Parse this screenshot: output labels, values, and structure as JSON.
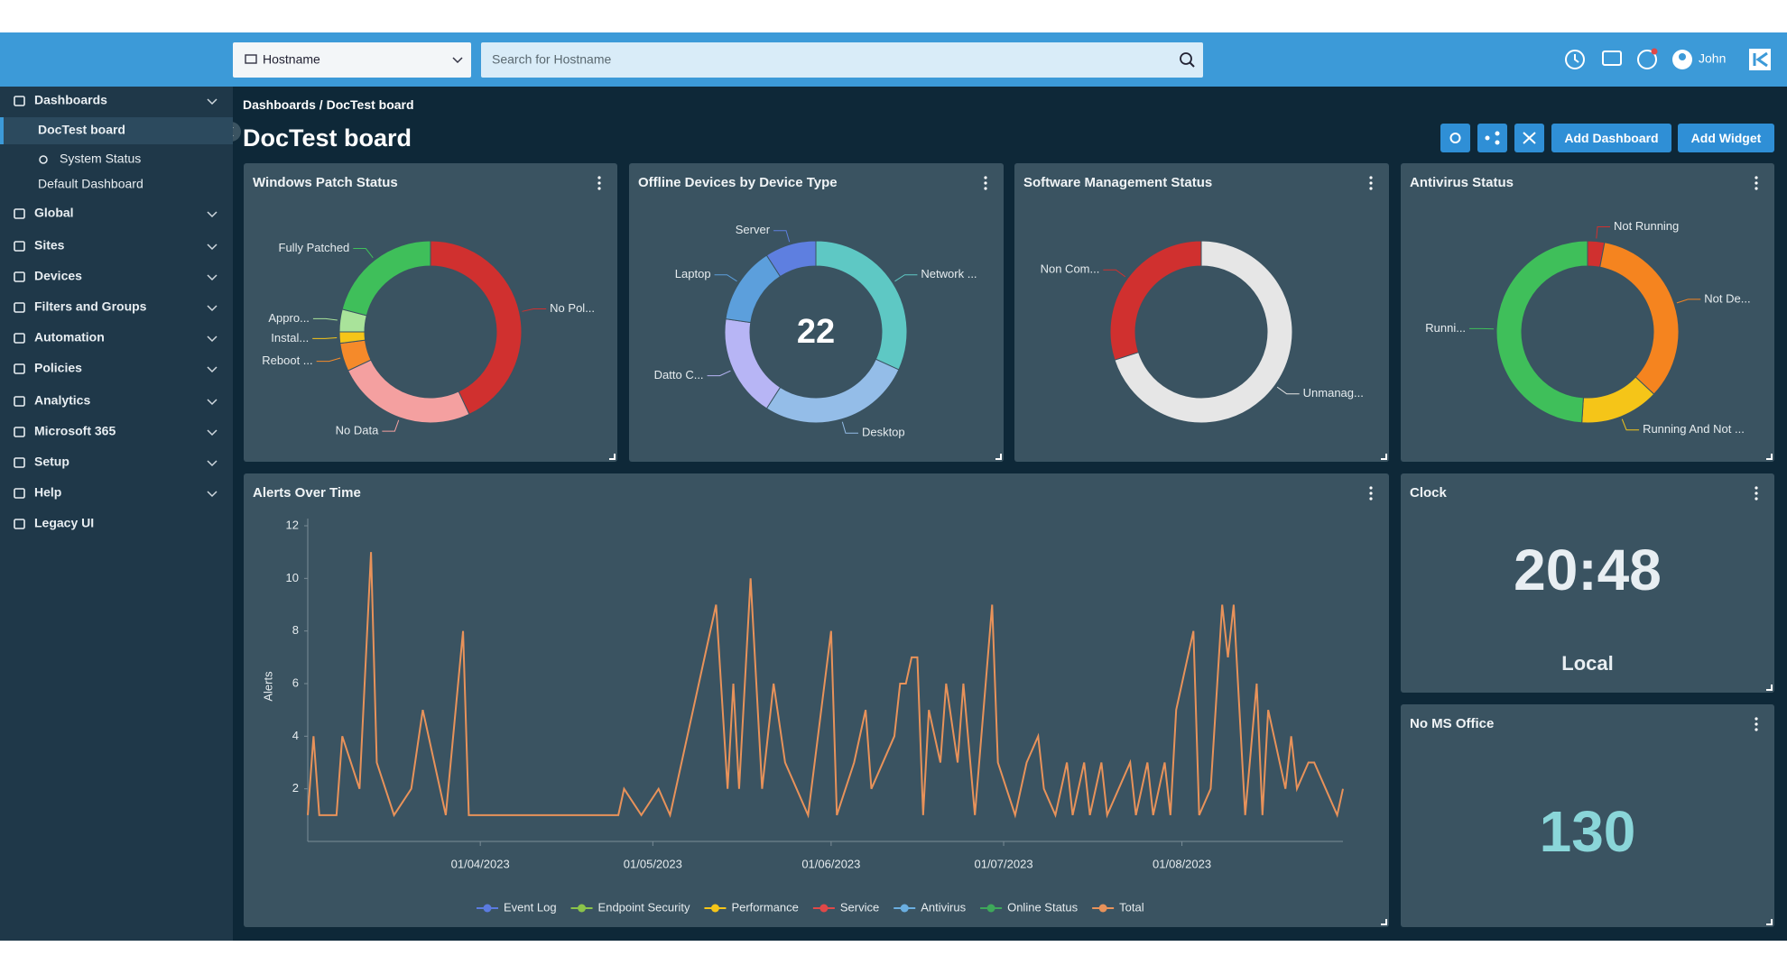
{
  "header": {
    "hostname_select": "Hostname",
    "search_placeholder": "Search for Hostname",
    "user": "John"
  },
  "sidebar": [
    {
      "label": "Dashboards",
      "level": 0,
      "expandable": true
    },
    {
      "label": "DocTest board",
      "level": 1,
      "active": true
    },
    {
      "label": "System Status",
      "level": 2
    },
    {
      "label": "Default Dashboard",
      "level": 1
    },
    {
      "label": "Global",
      "level": 0,
      "expandable": true
    },
    {
      "label": "Sites",
      "level": 0,
      "expandable": true
    },
    {
      "label": "Devices",
      "level": 0,
      "expandable": true
    },
    {
      "label": "Filters and Groups",
      "level": 0,
      "expandable": true
    },
    {
      "label": "Automation",
      "level": 0,
      "expandable": true
    },
    {
      "label": "Policies",
      "level": 0,
      "expandable": true
    },
    {
      "label": "Analytics",
      "level": 0,
      "expandable": true
    },
    {
      "label": "Microsoft 365",
      "level": 0,
      "expandable": true
    },
    {
      "label": "Setup",
      "level": 0,
      "expandable": true
    },
    {
      "label": "Help",
      "level": 0,
      "expandable": true
    },
    {
      "label": "Legacy UI",
      "level": 0
    }
  ],
  "breadcrumb": "Dashboards / DocTest board",
  "page_title": "DocTest board",
  "buttons": [
    "Add Dashboard",
    "Add Widget"
  ],
  "widgets": [
    {
      "title": "Windows Patch Status",
      "type": "donut",
      "categories": [
        "No Pol...",
        "No Data",
        "Reboot ...",
        "Instal...",
        "Appro...",
        "Fully Patched"
      ],
      "values": [
        43,
        25,
        5,
        2,
        4,
        21
      ],
      "colors": [
        "#d0302f",
        "#f4a0a0",
        "#f58a2a",
        "#f5c518",
        "#a9e39a",
        "#3fbf5a"
      ]
    },
    {
      "title": "Offline Devices by Device Type",
      "type": "donut",
      "total": 22,
      "categories": [
        "Network ...",
        "Desktop",
        "Datto C...",
        "Laptop",
        "Server"
      ],
      "values": [
        7,
        6,
        4,
        3,
        2
      ],
      "colors": [
        "#5ec8c4",
        "#94bde8",
        "#b7b5f5",
        "#5c9fdc",
        "#5e7fe0"
      ]
    },
    {
      "title": "Software Management Status",
      "type": "donut",
      "categories": [
        "Unmanag...",
        "Non Com..."
      ],
      "values": [
        70,
        30
      ],
      "colors": [
        "#e6e6e6",
        "#d0302f"
      ]
    },
    {
      "title": "Antivirus Status",
      "type": "donut",
      "categories": [
        "Not Running",
        "Not De...",
        "Running And Not ...",
        "Runni..."
      ],
      "values": [
        3,
        34,
        14,
        49
      ],
      "colors": [
        "#d0302f",
        "#f5841f",
        "#f5c518",
        "#3fbf5a"
      ]
    },
    {
      "title": "Alerts Over Time",
      "type": "line",
      "y_label": "Alerts",
      "x": [
        "02/03/2023",
        "03/03/2023",
        "04/03/2023",
        "07/03/2023",
        "08/03/2023",
        "11/03/2023",
        "13/03/2023",
        "14/03/2023",
        "17/03/2023",
        "20/03/2023",
        "22/03/2023",
        "26/03/2023",
        "29/03/2023",
        "30/03/2023",
        "25/04/2023",
        "26/04/2023",
        "29/04/2023",
        "02/05/2023",
        "04/05/2023",
        "12/05/2023",
        "14/05/2023",
        "15/05/2023",
        "16/05/2023",
        "18/05/2023",
        "20/05/2023",
        "22/05/2023",
        "24/05/2023",
        "28/05/2023",
        "01/06/2023",
        "02/06/2023",
        "05/06/2023",
        "07/06/2023",
        "08/06/2023",
        "12/06/2023",
        "13/06/2023",
        "14/06/2023",
        "15/06/2023",
        "16/06/2023",
        "17/06/2023",
        "18/06/2023",
        "20/06/2023",
        "21/06/2023",
        "23/06/2023",
        "24/06/2023",
        "26/06/2023",
        "29/06/2023",
        "30/06/2023",
        "03/07/2023",
        "05/07/2023",
        "07/07/2023",
        "08/07/2023",
        "10/07/2023",
        "12/07/2023",
        "13/07/2023",
        "15/07/2023",
        "16/07/2023",
        "18/07/2023",
        "19/07/2023",
        "21/07/2023",
        "23/07/2023",
        "24/07/2023",
        "26/07/2023",
        "27/07/2023",
        "29/07/2023",
        "30/07/2023",
        "31/07/2023",
        "03/08/2023",
        "04/08/2023",
        "06/08/2023",
        "08/08/2023",
        "09/08/2023",
        "10/08/2023",
        "12/08/2023",
        "14/08/2023",
        "15/08/2023",
        "16/08/2023",
        "17/08/2023",
        "19/08/2023",
        "20/08/2023",
        "21/08/2023",
        "23/08/2023",
        "24/08/2023",
        "26/08/2023",
        "28/08/2023",
        "29/08/2023"
      ],
      "xlim": [
        "02/03/2023",
        "29/08/2023"
      ],
      "xticks": [
        "01/04/2023",
        "01/05/2023",
        "01/06/2023",
        "01/07/2023",
        "01/08/2023"
      ],
      "ylim": [
        0,
        12
      ],
      "yticks": [
        2,
        4,
        6,
        8,
        10,
        12
      ],
      "series": [
        {
          "name": "Event Log",
          "color": "#5b7be0"
        },
        {
          "name": "Endpoint Security",
          "color": "#8bc34a"
        },
        {
          "name": "Performance",
          "color": "#f5c518"
        },
        {
          "name": "Service",
          "color": "#e04848"
        },
        {
          "name": "Antivirus",
          "color": "#6aaee0"
        },
        {
          "name": "Online Status",
          "color": "#3ea85a"
        },
        {
          "name": "Total",
          "color": "#e8925a",
          "values": [
            1,
            4,
            1,
            1,
            4,
            2,
            11,
            3,
            1,
            2,
            5,
            1,
            8,
            1,
            1,
            2,
            1,
            2,
            1,
            9,
            2,
            6,
            2,
            10,
            2,
            6,
            3,
            1,
            8,
            1,
            3,
            5,
            2,
            4,
            6,
            6,
            7,
            7,
            1,
            5,
            3,
            6,
            3,
            6,
            1,
            9,
            3,
            1,
            3,
            4,
            2,
            1,
            3,
            1,
            3,
            1,
            3,
            1,
            2,
            3,
            1,
            3,
            1,
            3,
            1,
            5,
            8,
            1,
            2,
            9,
            7,
            9,
            1,
            6,
            1,
            5,
            4,
            2,
            4,
            2,
            3,
            3,
            2,
            1,
            2
          ]
        }
      ]
    },
    {
      "title": "Clock",
      "type": "clock",
      "time": "20:48",
      "zone": "Local"
    },
    {
      "title": "No MS Office",
      "type": "count",
      "value": 130
    }
  ]
}
